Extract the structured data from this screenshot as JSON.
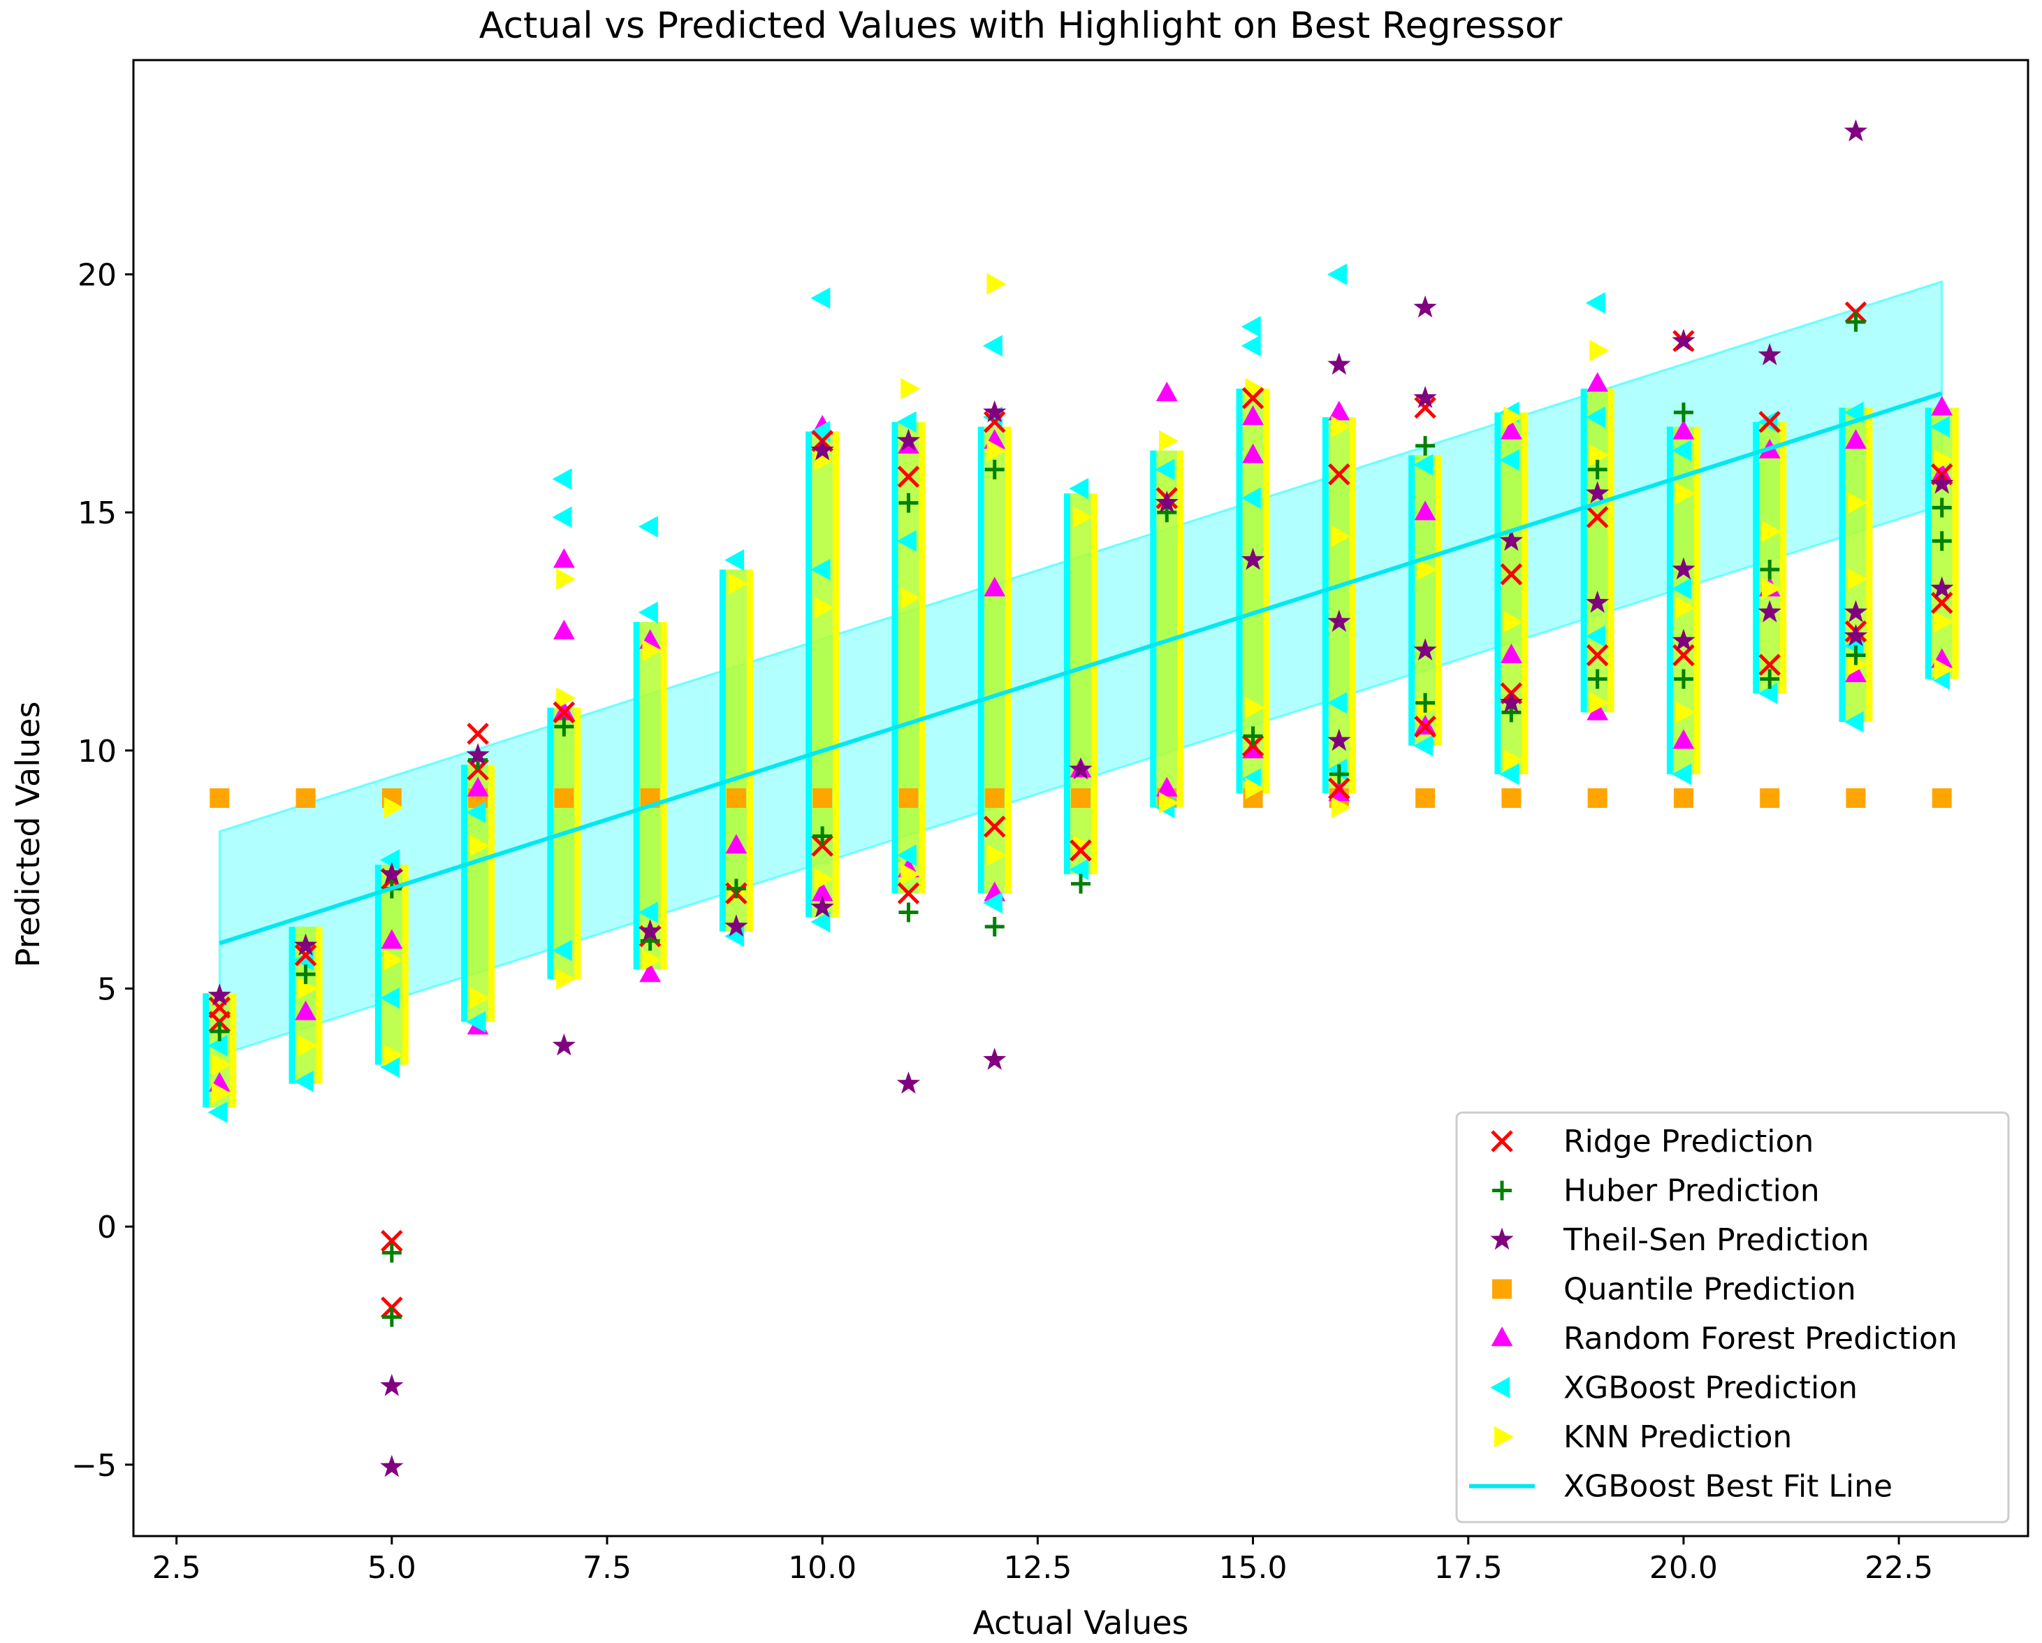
{
  "chart_data": {
    "type": "scatter",
    "title": "Actual vs Predicted Values with Highlight on Best Regressor",
    "xlabel": "Actual Values",
    "ylabel": "Predicted Values",
    "xlim": [
      2.0,
      24.0
    ],
    "ylim": [
      -6.5,
      24.5
    ],
    "xticks": [
      2.5,
      5.0,
      7.5,
      10.0,
      12.5,
      15.0,
      17.5,
      20.0,
      22.5
    ],
    "xtick_labels": [
      "2.5",
      "5.0",
      "7.5",
      "10.0",
      "12.5",
      "15.0",
      "17.5",
      "20.0",
      "22.5"
    ],
    "yticks": [
      -5,
      0,
      5,
      10,
      15,
      20
    ],
    "ytick_labels": [
      "−5",
      "0",
      "5",
      "10",
      "15",
      "20"
    ],
    "legend_position": "lower-right",
    "colors": {
      "ridge": "#ff0000",
      "huber": "#008000",
      "theilsen": "#800080",
      "quantile": "#ffa500",
      "rf": "#ff00ff",
      "xgb": "#00ffff",
      "knn": "#ffff00",
      "line": "#00e8f0",
      "band": "#00ffff"
    },
    "best_fit_line": {
      "name": "XGBoost Best Fit Line",
      "x": [
        3,
        23
      ],
      "y": [
        5.95,
        17.5
      ],
      "band_halfwidth": 2.35
    },
    "series": [
      {
        "name": "Ridge Prediction",
        "marker": "x",
        "color": "#ff0000",
        "points": [
          [
            3,
            4.6
          ],
          [
            3,
            4.3
          ],
          [
            4,
            5.7
          ],
          [
            5,
            -0.3
          ],
          [
            5,
            -1.7
          ],
          [
            5,
            7.3
          ],
          [
            6,
            10.35
          ],
          [
            6,
            9.6
          ],
          [
            7,
            10.8
          ],
          [
            8,
            6.1
          ],
          [
            9,
            7.0
          ],
          [
            10,
            16.5
          ],
          [
            10,
            8.0
          ],
          [
            11,
            15.75
          ],
          [
            11,
            7.0
          ],
          [
            12,
            16.9
          ],
          [
            12,
            8.4
          ],
          [
            13,
            7.9
          ],
          [
            14,
            15.3
          ],
          [
            15,
            10.1
          ],
          [
            15,
            17.4
          ],
          [
            16,
            15.8
          ],
          [
            16,
            9.2
          ],
          [
            17,
            17.2
          ],
          [
            17,
            10.5
          ],
          [
            18,
            11.2
          ],
          [
            18,
            13.7
          ],
          [
            19,
            12.0
          ],
          [
            19,
            14.9
          ],
          [
            20,
            18.6
          ],
          [
            20,
            12.0
          ],
          [
            21,
            11.8
          ],
          [
            21,
            16.9
          ],
          [
            22,
            19.2
          ],
          [
            22,
            12.5
          ],
          [
            23,
            15.8
          ],
          [
            23,
            13.1
          ]
        ]
      },
      {
        "name": "Huber Prediction",
        "marker": "+",
        "color": "#008000",
        "points": [
          [
            3,
            4.1
          ],
          [
            4,
            5.3
          ],
          [
            5,
            -0.55
          ],
          [
            5,
            -1.9
          ],
          [
            5,
            7.1
          ],
          [
            6,
            9.8
          ],
          [
            7,
            10.5
          ],
          [
            8,
            6.0
          ],
          [
            9,
            7.1
          ],
          [
            10,
            8.2
          ],
          [
            11,
            6.6
          ],
          [
            11,
            15.2
          ],
          [
            12,
            6.3
          ],
          [
            12,
            15.9
          ],
          [
            13,
            7.2
          ],
          [
            14,
            15.0
          ],
          [
            15,
            10.3
          ],
          [
            16,
            9.5
          ],
          [
            17,
            16.4
          ],
          [
            17,
            11.0
          ],
          [
            18,
            10.8
          ],
          [
            19,
            15.9
          ],
          [
            19,
            11.5
          ],
          [
            20,
            17.1
          ],
          [
            20,
            11.5
          ],
          [
            21,
            11.5
          ],
          [
            21,
            13.8
          ],
          [
            22,
            19.0
          ],
          [
            22,
            12.0
          ],
          [
            23,
            14.4
          ],
          [
            23,
            15.1
          ]
        ]
      },
      {
        "name": "Theil-Sen Prediction",
        "marker": "star",
        "color": "#800080",
        "points": [
          [
            3,
            4.85
          ],
          [
            4,
            5.9
          ],
          [
            5,
            -3.35
          ],
          [
            5,
            -5.05
          ],
          [
            5,
            7.4
          ],
          [
            6,
            9.9
          ],
          [
            7,
            3.8
          ],
          [
            8,
            6.2
          ],
          [
            9,
            6.3
          ],
          [
            10,
            16.3
          ],
          [
            10,
            6.7
          ],
          [
            11,
            3.0
          ],
          [
            11,
            16.5
          ],
          [
            12,
            3.5
          ],
          [
            12,
            17.1
          ],
          [
            13,
            9.6
          ],
          [
            14,
            15.2
          ],
          [
            15,
            14.0
          ],
          [
            16,
            18.1
          ],
          [
            16,
            10.2
          ],
          [
            16,
            12.7
          ],
          [
            17,
            19.3
          ],
          [
            17,
            17.4
          ],
          [
            17,
            12.1
          ],
          [
            18,
            14.4
          ],
          [
            18,
            11.0
          ],
          [
            19,
            15.4
          ],
          [
            19,
            13.1
          ],
          [
            20,
            18.6
          ],
          [
            20,
            13.8
          ],
          [
            20,
            12.3
          ],
          [
            21,
            18.3
          ],
          [
            21,
            12.9
          ],
          [
            22,
            23.0
          ],
          [
            22,
            12.9
          ],
          [
            22,
            12.4
          ],
          [
            23,
            13.4
          ],
          [
            23,
            15.6
          ]
        ]
      },
      {
        "name": "Quantile Prediction",
        "marker": "square",
        "color": "#ffa500",
        "points": [
          [
            3,
            9.0
          ],
          [
            4,
            9.0
          ],
          [
            5,
            9.0
          ],
          [
            6,
            9.0
          ],
          [
            7,
            9.0
          ],
          [
            8,
            9.0
          ],
          [
            9,
            9.0
          ],
          [
            10,
            9.0
          ],
          [
            11,
            9.0
          ],
          [
            12,
            9.0
          ],
          [
            13,
            9.0
          ],
          [
            14,
            9.0
          ],
          [
            15,
            9.0
          ],
          [
            16,
            9.0
          ],
          [
            17,
            9.0
          ],
          [
            18,
            9.0
          ],
          [
            19,
            9.0
          ],
          [
            20,
            9.0
          ],
          [
            21,
            9.0
          ],
          [
            22,
            9.0
          ],
          [
            23,
            9.0
          ]
        ]
      },
      {
        "name": "Random Forest Prediction",
        "marker": "triangle-up",
        "color": "#ff00ff",
        "points": [
          [
            3,
            3.0
          ],
          [
            4,
            4.5
          ],
          [
            5,
            6.0
          ],
          [
            6,
            4.2
          ],
          [
            6,
            9.2
          ],
          [
            7,
            14.0
          ],
          [
            7,
            12.5
          ],
          [
            7,
            10.8
          ],
          [
            8,
            5.3
          ],
          [
            8,
            12.3
          ],
          [
            9,
            8.0
          ],
          [
            10,
            16.8
          ],
          [
            10,
            7.0
          ],
          [
            11,
            16.4
          ],
          [
            11,
            7.5
          ],
          [
            12,
            7.0
          ],
          [
            12,
            16.5
          ],
          [
            12,
            13.4
          ],
          [
            13,
            9.6
          ],
          [
            14,
            17.5
          ],
          [
            14,
            9.2
          ],
          [
            15,
            17.0
          ],
          [
            15,
            16.2
          ],
          [
            15,
            10.0
          ],
          [
            16,
            17.1
          ],
          [
            16,
            9.1
          ],
          [
            17,
            10.5
          ],
          [
            17,
            15.0
          ],
          [
            18,
            16.7
          ],
          [
            18,
            12.0
          ],
          [
            19,
            17.7
          ],
          [
            19,
            10.8
          ],
          [
            20,
            16.7
          ],
          [
            20,
            10.2
          ],
          [
            21,
            16.3
          ],
          [
            21,
            13.4
          ],
          [
            22,
            16.5
          ],
          [
            22,
            11.6
          ],
          [
            23,
            17.2
          ],
          [
            23,
            11.9
          ],
          [
            23,
            15.8
          ]
        ]
      },
      {
        "name": "XGBoost Prediction",
        "marker": "triangle-left",
        "color": "#00ffff",
        "points": [
          [
            3,
            2.4
          ],
          [
            3,
            3.8
          ],
          [
            4,
            3.05
          ],
          [
            4,
            5.6
          ],
          [
            5,
            3.35
          ],
          [
            5,
            7.7
          ],
          [
            5,
            4.8
          ],
          [
            6,
            4.3
          ],
          [
            6,
            8.7
          ],
          [
            7,
            15.7
          ],
          [
            7,
            14.9
          ],
          [
            7,
            5.8
          ],
          [
            8,
            14.7
          ],
          [
            8,
            12.9
          ],
          [
            8,
            6.6
          ],
          [
            9,
            14.0
          ],
          [
            9,
            6.1
          ],
          [
            10,
            19.5
          ],
          [
            10,
            16.7
          ],
          [
            10,
            6.4
          ],
          [
            10,
            13.8
          ],
          [
            11,
            16.9
          ],
          [
            11,
            7.8
          ],
          [
            11,
            14.4
          ],
          [
            12,
            18.5
          ],
          [
            12,
            17.0
          ],
          [
            12,
            6.8
          ],
          [
            13,
            15.5
          ],
          [
            13,
            7.5
          ],
          [
            14,
            15.9
          ],
          [
            14,
            8.8
          ],
          [
            15,
            18.9
          ],
          [
            15,
            18.5
          ],
          [
            15,
            9.4
          ],
          [
            15,
            15.3
          ],
          [
            16,
            20.0
          ],
          [
            16,
            11.0
          ],
          [
            16,
            9.6
          ],
          [
            17,
            16.0
          ],
          [
            17,
            10.1
          ],
          [
            18,
            17.1
          ],
          [
            18,
            16.1
          ],
          [
            18,
            9.5
          ],
          [
            19,
            19.4
          ],
          [
            19,
            17.0
          ],
          [
            19,
            12.4
          ],
          [
            20,
            16.3
          ],
          [
            20,
            9.5
          ],
          [
            20,
            13.4
          ],
          [
            21,
            16.9
          ],
          [
            21,
            11.2
          ],
          [
            22,
            17.1
          ],
          [
            22,
            10.6
          ],
          [
            22,
            12.2
          ],
          [
            23,
            16.8
          ],
          [
            23,
            11.5
          ]
        ]
      },
      {
        "name": "KNN Prediction",
        "marker": "triangle-right",
        "color": "#ffff00",
        "points": [
          [
            3,
            2.8
          ],
          [
            3,
            3.4
          ],
          [
            4,
            3.8
          ],
          [
            4,
            5.0
          ],
          [
            5,
            3.6
          ],
          [
            5,
            8.8
          ],
          [
            5,
            5.6
          ],
          [
            6,
            4.8
          ],
          [
            6,
            8.0
          ],
          [
            7,
            13.6
          ],
          [
            7,
            11.1
          ],
          [
            7,
            5.2
          ],
          [
            8,
            12.1
          ],
          [
            8,
            5.6
          ],
          [
            9,
            13.5
          ],
          [
            9,
            7.0
          ],
          [
            10,
            16.1
          ],
          [
            10,
            7.3
          ],
          [
            10,
            13.0
          ],
          [
            11,
            17.6
          ],
          [
            11,
            7.4
          ],
          [
            11,
            13.2
          ],
          [
            12,
            19.8
          ],
          [
            12,
            16.3
          ],
          [
            12,
            7.8
          ],
          [
            13,
            14.9
          ],
          [
            13,
            8.0
          ],
          [
            14,
            16.5
          ],
          [
            14,
            8.9
          ],
          [
            15,
            17.6
          ],
          [
            15,
            10.9
          ],
          [
            15,
            9.2
          ],
          [
            16,
            16.8
          ],
          [
            16,
            8.8
          ],
          [
            16,
            14.5
          ],
          [
            17,
            13.8
          ],
          [
            17,
            10.9
          ],
          [
            18,
            17.0
          ],
          [
            18,
            9.8
          ],
          [
            18,
            12.7
          ],
          [
            19,
            18.4
          ],
          [
            19,
            11.0
          ],
          [
            19,
            16.2
          ],
          [
            20,
            15.4
          ],
          [
            20,
            10.8
          ],
          [
            20,
            13.0
          ],
          [
            21,
            14.6
          ],
          [
            21,
            13.4
          ],
          [
            22,
            15.2
          ],
          [
            22,
            13.6
          ],
          [
            22,
            11.8
          ],
          [
            23,
            16.1
          ],
          [
            23,
            12.7
          ],
          [
            23,
            11.7
          ]
        ]
      }
    ],
    "fill_columns": [
      {
        "x": 3,
        "y0": 2.5,
        "y1": 4.9
      },
      {
        "x": 4,
        "y0": 3.0,
        "y1": 6.3
      },
      {
        "x": 5,
        "y0": 3.4,
        "y1": 7.6
      },
      {
        "x": 6,
        "y0": 4.3,
        "y1": 9.7
      },
      {
        "x": 7,
        "y0": 5.2,
        "y1": 10.9
      },
      {
        "x": 8,
        "y0": 5.4,
        "y1": 12.7
      },
      {
        "x": 9,
        "y0": 6.2,
        "y1": 13.8
      },
      {
        "x": 10,
        "y0": 6.5,
        "y1": 16.7
      },
      {
        "x": 11,
        "y0": 7.0,
        "y1": 16.9
      },
      {
        "x": 12,
        "y0": 7.0,
        "y1": 16.8
      },
      {
        "x": 13,
        "y0": 7.4,
        "y1": 15.4
      },
      {
        "x": 14,
        "y0": 8.8,
        "y1": 16.3
      },
      {
        "x": 15,
        "y0": 9.1,
        "y1": 17.6
      },
      {
        "x": 16,
        "y0": 9.1,
        "y1": 17.0
      },
      {
        "x": 17,
        "y0": 10.1,
        "y1": 16.2
      },
      {
        "x": 18,
        "y0": 9.5,
        "y1": 17.1
      },
      {
        "x": 19,
        "y0": 10.8,
        "y1": 17.6
      },
      {
        "x": 20,
        "y0": 9.5,
        "y1": 16.8
      },
      {
        "x": 21,
        "y0": 11.2,
        "y1": 16.9
      },
      {
        "x": 22,
        "y0": 10.6,
        "y1": 17.2
      },
      {
        "x": 23,
        "y0": 11.5,
        "y1": 17.2
      }
    ]
  }
}
